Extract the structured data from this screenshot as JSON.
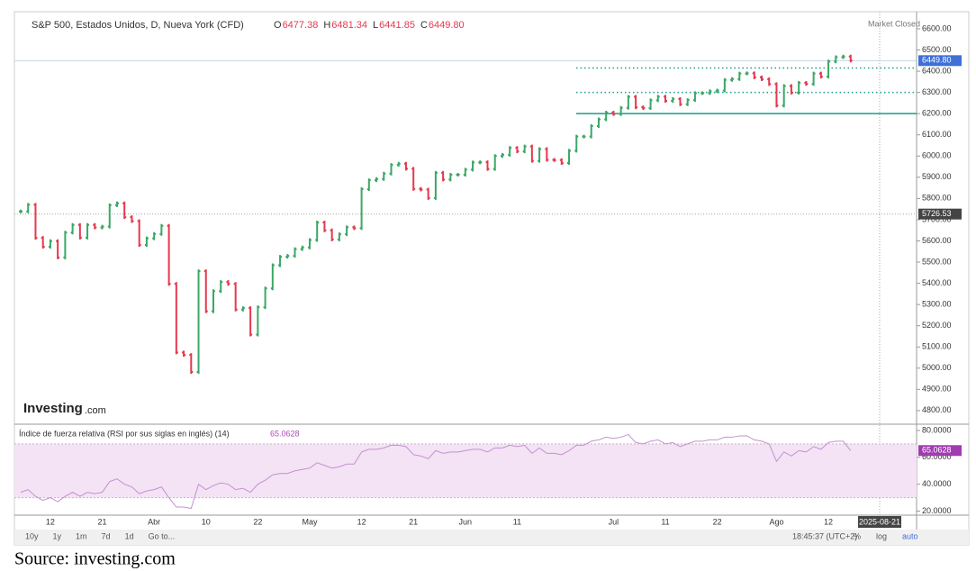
{
  "chart_data": [
    {
      "type": "ohlc",
      "title": "S&P 500, Estados Unidos, D, Nueva York (CFD)",
      "ohlc": [
        {
          "key": "O",
          "value": "6477.38"
        },
        {
          "key": "H",
          "value": "6481.34"
        },
        {
          "key": "L",
          "value": "6441.85"
        },
        {
          "key": "C",
          "value": "6449.80"
        }
      ],
      "status": "Market Closed",
      "logo": "Investing",
      "logo_suffix": ".com",
      "up_color": "#3aa866",
      "down_color": "#e5394d",
      "categories": [
        null,
        null,
        null,
        null,
        "12",
        null,
        null,
        null,
        null,
        null,
        null,
        "21",
        null,
        null,
        null,
        null,
        null,
        null,
        "Abr",
        null,
        null,
        null,
        null,
        null,
        null,
        "10",
        null,
        null,
        null,
        null,
        null,
        null,
        "22",
        null,
        null,
        null,
        null,
        null,
        null,
        "May",
        null,
        null,
        null,
        null,
        null,
        null,
        "12",
        null,
        null,
        null,
        null,
        null,
        null,
        "21",
        null,
        null,
        null,
        null,
        null,
        null,
        "Jun",
        null,
        null,
        null,
        null,
        null,
        null,
        "11",
        null,
        null,
        null,
        null,
        null,
        null,
        null,
        null,
        null,
        null,
        null,
        null,
        "Jul",
        null,
        null,
        null,
        null,
        null,
        null,
        "11",
        null,
        null,
        null,
        null,
        null,
        null,
        "22",
        null,
        null,
        null,
        null,
        null,
        null,
        null,
        "Ago",
        null,
        null,
        null,
        null,
        null,
        null,
        "12",
        null,
        null,
        null
      ],
      "values": [
        5739,
        5770,
        5614,
        5572,
        5599,
        5522,
        5639,
        5675,
        5615,
        5675,
        5663,
        5667,
        5768,
        5777,
        5712,
        5693,
        5581,
        5612,
        5633,
        5671,
        5397,
        5074,
        5062,
        4982,
        5457,
        5268,
        5363,
        5406,
        5397,
        5276,
        5283,
        5158,
        5287,
        5376,
        5485,
        5525,
        5529,
        5561,
        5569,
        5604,
        5687,
        5650,
        5607,
        5631,
        5664,
        5660,
        5844,
        5886,
        5892,
        5917,
        5958,
        5964,
        5940,
        5845,
        5842,
        5802,
        5921,
        5889,
        5912,
        5912,
        5936,
        5970,
        5971,
        5939,
        6000,
        6006,
        6038,
        6022,
        6045,
        5977,
        6033,
        5982,
        5981,
        5967,
        6025,
        6092,
        6092,
        6141,
        6173,
        6205,
        6198,
        6227,
        6279,
        6230,
        6226,
        6263,
        6280,
        6260,
        6269,
        6244,
        6264,
        6297,
        6297,
        6306,
        6309,
        6359,
        6363,
        6389,
        6390,
        6371,
        6362,
        6339,
        6238,
        6330,
        6299,
        6345,
        6340,
        6389,
        6374,
        6446,
        6466,
        6469,
        6450
      ],
      "ylim": [
        4740,
        6672
      ],
      "yticks": [
        {
          "value": 4800,
          "label": "4800.00"
        },
        {
          "value": 4900,
          "label": "4900.00"
        },
        {
          "value": 5000,
          "label": "5000.00"
        },
        {
          "value": 5100,
          "label": "5100.00"
        },
        {
          "value": 5200,
          "label": "5200.00"
        },
        {
          "value": 5300,
          "label": "5300.00"
        },
        {
          "value": 5400,
          "label": "5400.00"
        },
        {
          "value": 5500,
          "label": "5500.00"
        },
        {
          "value": 5600,
          "label": "5600.00"
        },
        {
          "value": 5700,
          "label": "5700.00"
        },
        {
          "value": 5800,
          "label": "5800.00"
        },
        {
          "value": 5900,
          "label": "5900.00"
        },
        {
          "value": 6000,
          "label": "6000.00"
        },
        {
          "value": 6100,
          "label": "6100.00"
        },
        {
          "value": 6200,
          "label": "6200.00"
        },
        {
          "value": 6300,
          "label": "6300.00"
        },
        {
          "value": 6400,
          "label": "6400.00"
        },
        {
          "value": 6500,
          "label": "6500.00"
        },
        {
          "value": 6600,
          "label": "6600.00"
        }
      ],
      "levels": [
        {
          "value": 6415,
          "style": "dotted"
        },
        {
          "value": 6300,
          "style": "dotted"
        },
        {
          "value": 6200,
          "style": "solid"
        }
      ],
      "level_color": "#1a9c8c",
      "last_price": {
        "value": 6449.8,
        "label": "6449.80"
      },
      "crosshair": {
        "price": 5726.53,
        "date": "2025-08-21"
      }
    },
    {
      "type": "line",
      "title": "Índice de fuerza relativa (RSI por sus siglas en inglés) (14)",
      "color": "#c68fd4",
      "band": [
        30,
        70
      ],
      "values": [
        34,
        36,
        31,
        28,
        30,
        27,
        31,
        34,
        31,
        34,
        33,
        34,
        42,
        44,
        40,
        38,
        33,
        35,
        36,
        38,
        30,
        23,
        23,
        22,
        40,
        36,
        39,
        41,
        40,
        36,
        37,
        34,
        40,
        43,
        47,
        48,
        48,
        50,
        51,
        52,
        56,
        54,
        52,
        53,
        55,
        55,
        64,
        66,
        66,
        67,
        69,
        69,
        68,
        62,
        61,
        59,
        65,
        63,
        64,
        64,
        65,
        66,
        66,
        64,
        67,
        67,
        69,
        68,
        69,
        63,
        67,
        63,
        63,
        62,
        65,
        69,
        69,
        72,
        73,
        75,
        74,
        75,
        77,
        71,
        70,
        72,
        73,
        70,
        71,
        68,
        70,
        72,
        72,
        73,
        73,
        75,
        75,
        76,
        76,
        73,
        72,
        70,
        57,
        64,
        61,
        65,
        64,
        68,
        66,
        71,
        72,
        72,
        65.0628
      ],
      "last": 65.0628,
      "ylim": [
        17,
        84
      ],
      "yticks": [
        {
          "value": 20,
          "label": "20.0000"
        },
        {
          "value": 40,
          "label": "40.0000"
        },
        {
          "value": 60,
          "label": "60.0000"
        },
        {
          "value": 80,
          "label": "80.0000"
        }
      ]
    }
  ],
  "toolbar": {
    "ranges": [
      "10y",
      "1y",
      "1m",
      "7d",
      "1d",
      "Go to..."
    ],
    "time": "18:45:37 (UTC+2)",
    "options": [
      "%",
      "log",
      "auto"
    ]
  },
  "source": "Source: investing.com"
}
